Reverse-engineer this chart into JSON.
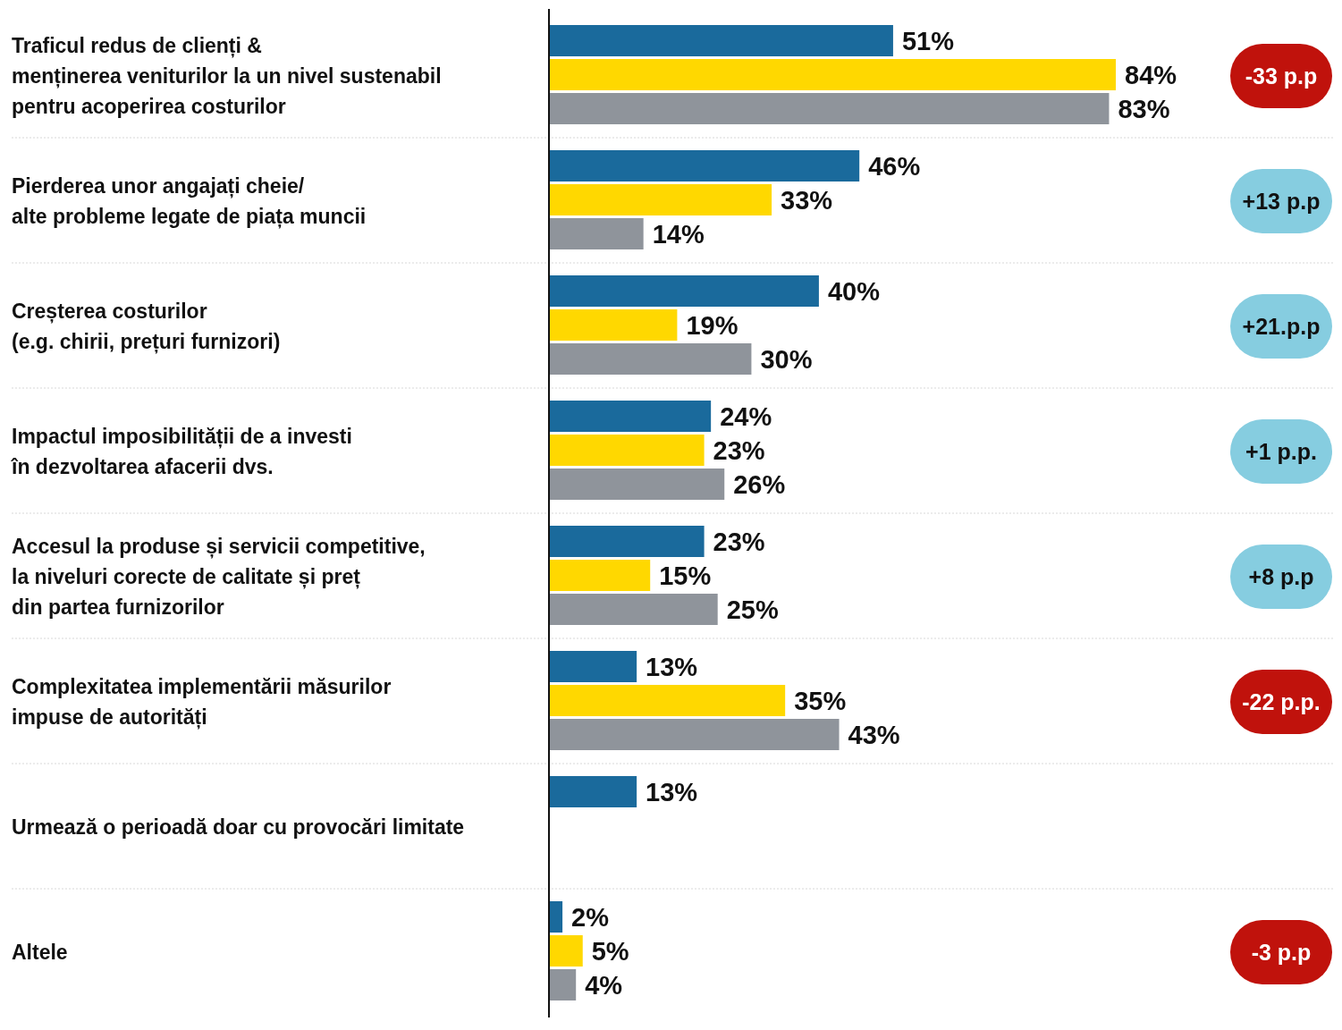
{
  "chart_data": {
    "type": "bar",
    "orientation": "horizontal",
    "categories": [
      "Traficul redus de clienți &\nmenținerea veniturilor la un nivel sustenabil\npentru acoperirea costurilor",
      "Pierderea unor angajați cheie/\nalte probleme legate de piața muncii",
      "Creșterea costurilor\n(e.g. chirii, prețuri furnizori)",
      "Impactul imposibilității de a investi\nîn dezvoltarea afacerii dvs.",
      "Accesul la produse și servicii competitive,\nla niveluri corecte de calitate și preț\ndin partea furnizorilor",
      "Complexitatea implementării măsurilor\nimpuse de autorități",
      "Urmează o perioadă doar cu provocări limitate",
      "Altele"
    ],
    "series": [
      {
        "color": "#1a6a9c",
        "values": [
          51,
          46,
          40,
          24,
          23,
          13,
          13,
          2
        ],
        "value_labels": [
          "51%",
          "46%",
          "40%",
          "24%",
          "23%",
          "13%",
          "13%",
          "2%"
        ]
      },
      {
        "color": "#ffd800",
        "values": [
          84,
          33,
          19,
          23,
          15,
          35,
          null,
          5
        ],
        "value_labels": [
          "84%",
          "33%",
          "19%",
          "23%",
          "15%",
          "35%",
          null,
          "5%"
        ]
      },
      {
        "color": "#8f949b",
        "values": [
          83,
          14,
          30,
          26,
          25,
          43,
          null,
          4
        ],
        "value_labels": [
          "83%",
          "14%",
          "30%",
          "26%",
          "25%",
          "43%",
          null,
          "4%"
        ]
      }
    ],
    "annotations": [
      "-33 p.p",
      "+13 p.p",
      "+21.p.p",
      "+1 p.p.",
      "+8 p.p",
      "-22 p.p.",
      "-3 p.p"
    ]
  }
}
